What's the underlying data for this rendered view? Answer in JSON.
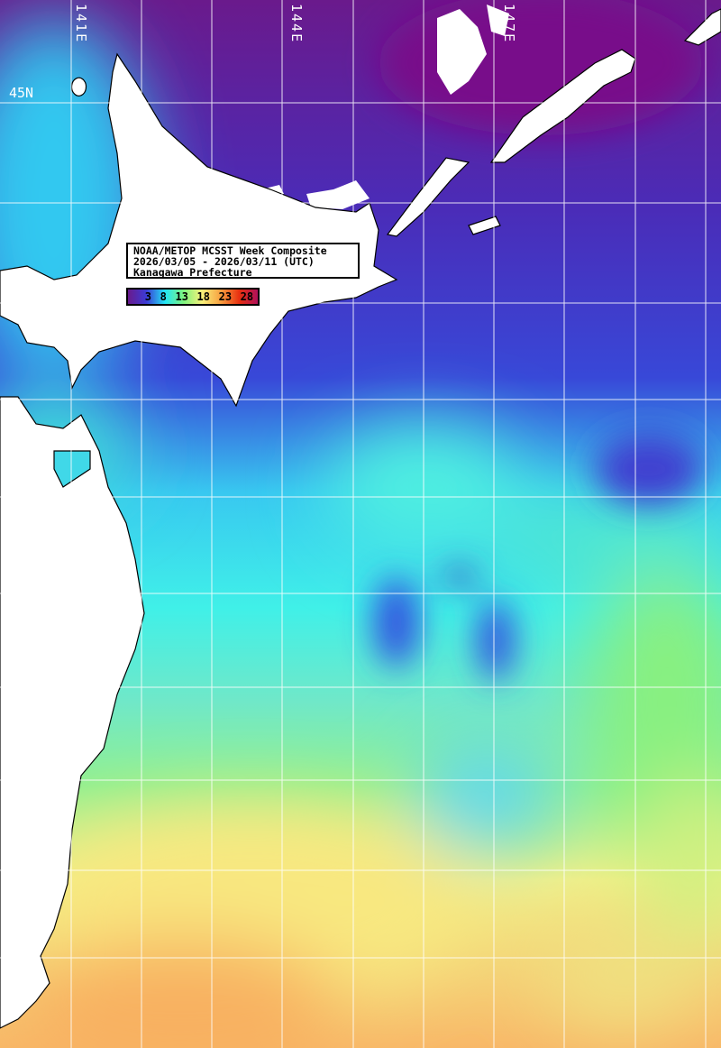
{
  "title": {
    "line1": "NOAA/METOP MCSST Week Composite",
    "line2": "2026/03/05 - 2026/03/11 (UTC)",
    "line3": "Kanagawa Prefecture"
  },
  "colorbar": {
    "ticks": [
      "3",
      "8",
      "13",
      "18",
      "23",
      "28"
    ],
    "colors": [
      "#6a1a8c",
      "#3b3bd6",
      "#22e6f5",
      "#7ef47e",
      "#f8f07a",
      "#f8a040",
      "#e83010",
      "#b0105a"
    ]
  },
  "grid_labels": {
    "lon": [
      "141E",
      "144E",
      "147E"
    ],
    "lat": [
      "45N"
    ]
  },
  "palette": {
    "land": "#ffffff",
    "coast": "#000000",
    "grid": "#ffffff"
  }
}
